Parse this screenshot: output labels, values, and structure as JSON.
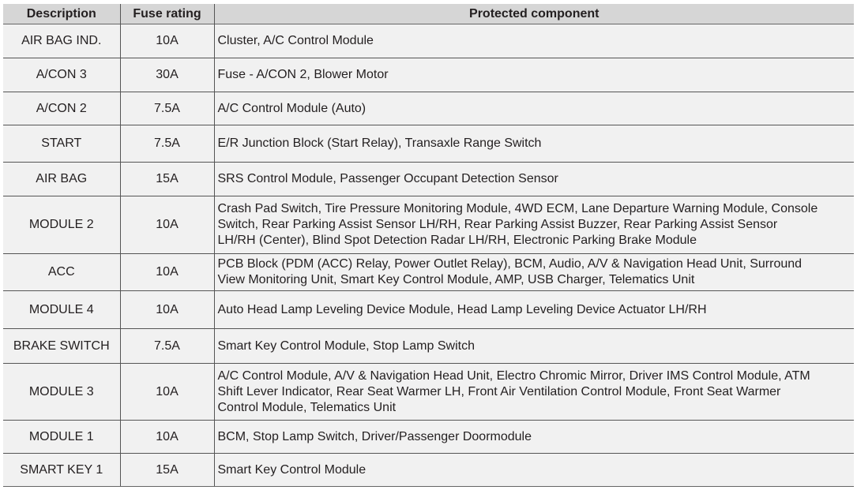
{
  "headers": {
    "description": "Description",
    "rating": "Fuse rating",
    "component": "Protected component"
  },
  "rows": [
    {
      "description": "AIR BAG IND.",
      "rating": "10A",
      "lines": [
        "Cluster, A/C Control Module"
      ]
    },
    {
      "description": "A/CON 3",
      "rating": "30A",
      "lines": [
        "Fuse - A/CON 2, Blower Motor"
      ]
    },
    {
      "description": "A/CON 2",
      "rating": "7.5A",
      "lines": [
        "A/C Control Module (Auto)"
      ]
    },
    {
      "description": "START",
      "rating": "7.5A",
      "lines": [
        "E/R Junction Block (Start Relay), Transaxle Range Switch"
      ]
    },
    {
      "description": "AIR BAG",
      "rating": "15A",
      "lines": [
        "SRS Control Module, Passenger Occupant Detection Sensor"
      ]
    },
    {
      "description": "MODULE 2",
      "rating": "10A",
      "lines": [
        "Crash Pad Switch, Tire Pressure Monitoring Module, 4WD ECM, Lane Departure Warning Module, Console",
        "Switch, Rear Parking Assist Sensor LH/RH, Rear Parking Assist Buzzer,  Rear Parking Assist Sensor",
        "LH/RH (Center), Blind Spot Detection Radar LH/RH, Electronic Parking Brake Module"
      ]
    },
    {
      "description": "ACC",
      "rating": "10A",
      "lines": [
        "PCB Block (PDM (ACC) Relay, Power Outlet Relay), BCM, Audio, A/V & Navigation Head Unit, Surround",
        "View Monitoring Unit, Smart Key Control Module, AMP, USB Charger, Telematics Unit"
      ]
    },
    {
      "description": "MODULE 4",
      "rating": "10A",
      "lines": [
        "Auto Head Lamp Leveling Device Module, Head Lamp Leveling Device Actuator LH/RH"
      ]
    },
    {
      "description": "BRAKE SWITCH",
      "rating": "7.5A",
      "lines": [
        "Smart Key Control Module, Stop Lamp Switch"
      ]
    },
    {
      "description": "MODULE 3",
      "rating": "10A",
      "lines": [
        "A/C Control Module, A/V & Navigation Head Unit, Electro Chromic Mirror, Driver IMS Control Module, ATM",
        "Shift Lever Indicator, Rear Seat Warmer LH, Front Air Ventilation Control Module, Front Seat Warmer",
        "Control Module, Telematics Unit"
      ]
    },
    {
      "description": "MODULE 1",
      "rating": "10A",
      "lines": [
        "BCM, Stop Lamp Switch, Driver/Passenger Doormodule"
      ]
    },
    {
      "description": "SMART KEY 1",
      "rating": "15A",
      "lines": [
        "Smart Key Control Module"
      ]
    }
  ]
}
